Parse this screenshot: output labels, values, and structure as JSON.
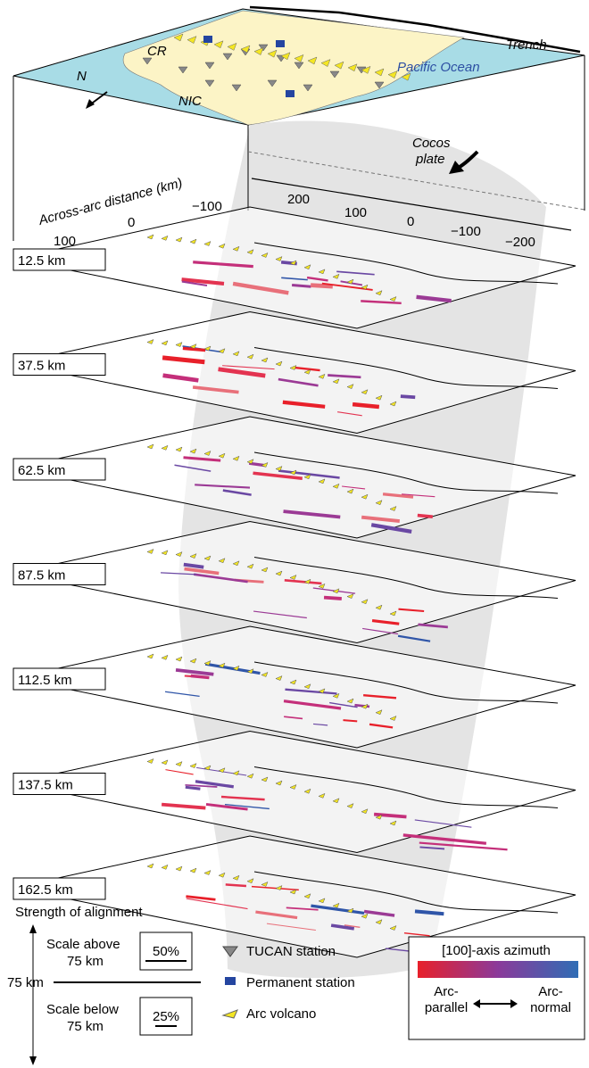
{
  "map": {
    "trench": "Trench",
    "cr": "CR",
    "nic": "NIC",
    "north": "N",
    "ocean": "Pacific Ocean",
    "plate": [
      "Cocos",
      "plate"
    ]
  },
  "axes": {
    "across_title": "Across-arc distance (km)",
    "across_ticks": [
      "100",
      "0",
      "−100"
    ],
    "along_ticks": [
      "200",
      "100",
      "0",
      "−100",
      "−200"
    ]
  },
  "layers": [
    "12.5 km",
    "37.5 km",
    "62.5 km",
    "87.5 km",
    "112.5 km",
    "137.5 km",
    "162.5 km"
  ],
  "legend": {
    "strength_title": "Strength of alignment",
    "above": [
      "Scale above",
      "75 km"
    ],
    "above_scale": "50%",
    "depth": "75 km",
    "below": [
      "Scale below",
      "75 km"
    ],
    "below_scale": "25%",
    "symbols": [
      "TUCAN station",
      "Permanent station",
      "Arc volcano"
    ],
    "colorbar_title": "[100]-axis azimuth",
    "colorbar_left": [
      "Arc-",
      "parallel"
    ],
    "colorbar_right": [
      "Arc-",
      "normal"
    ]
  }
}
